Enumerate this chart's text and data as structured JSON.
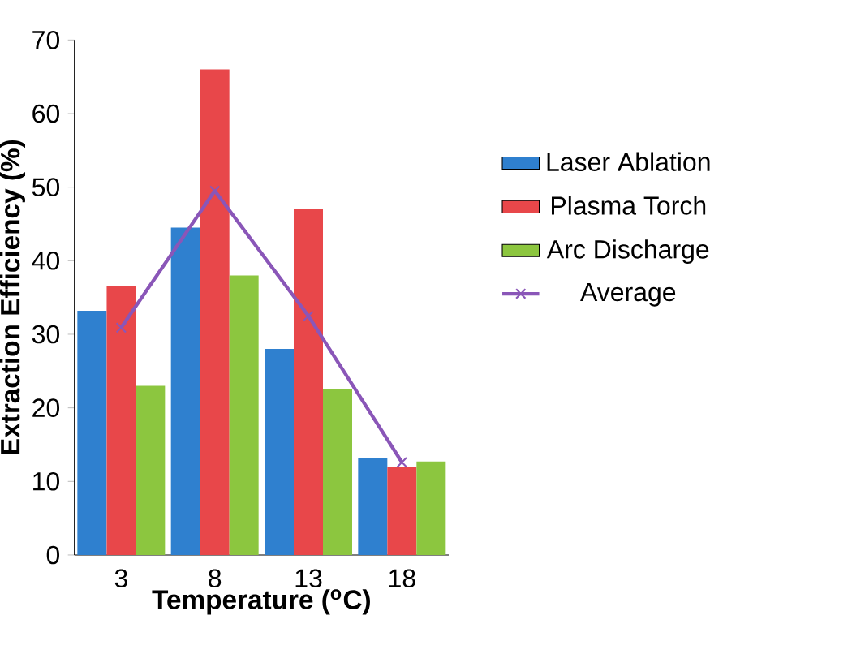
{
  "chart_data": {
    "type": "bar",
    "xlabel": "Temperature ($^{o}$C)",
    "ylabel": "Extraction Efficiency (%)",
    "categories": [
      "3",
      "8",
      "13",
      "18"
    ],
    "series": [
      {
        "name": "Laser Ablation",
        "color": "#2f80cf",
        "values": [
          33.2,
          44.5,
          28,
          13.2
        ]
      },
      {
        "name": "Plasma Torch",
        "color": "#e8474a",
        "values": [
          36.5,
          66,
          47,
          12
        ]
      },
      {
        "name": "Arc Discharge",
        "color": "#8cc63f",
        "values": [
          23,
          38,
          22.5,
          12.7
        ]
      },
      {
        "name": "Average",
        "type": "line",
        "color": "#8a56b8",
        "marker": "cross",
        "values": [
          30.9,
          49.5,
          32.5,
          12.6
        ]
      }
    ],
    "ylim": [
      0,
      70
    ],
    "yticks": [
      0,
      10,
      20,
      30,
      40,
      50,
      60,
      70
    ],
    "grid": false,
    "legend": "right"
  }
}
